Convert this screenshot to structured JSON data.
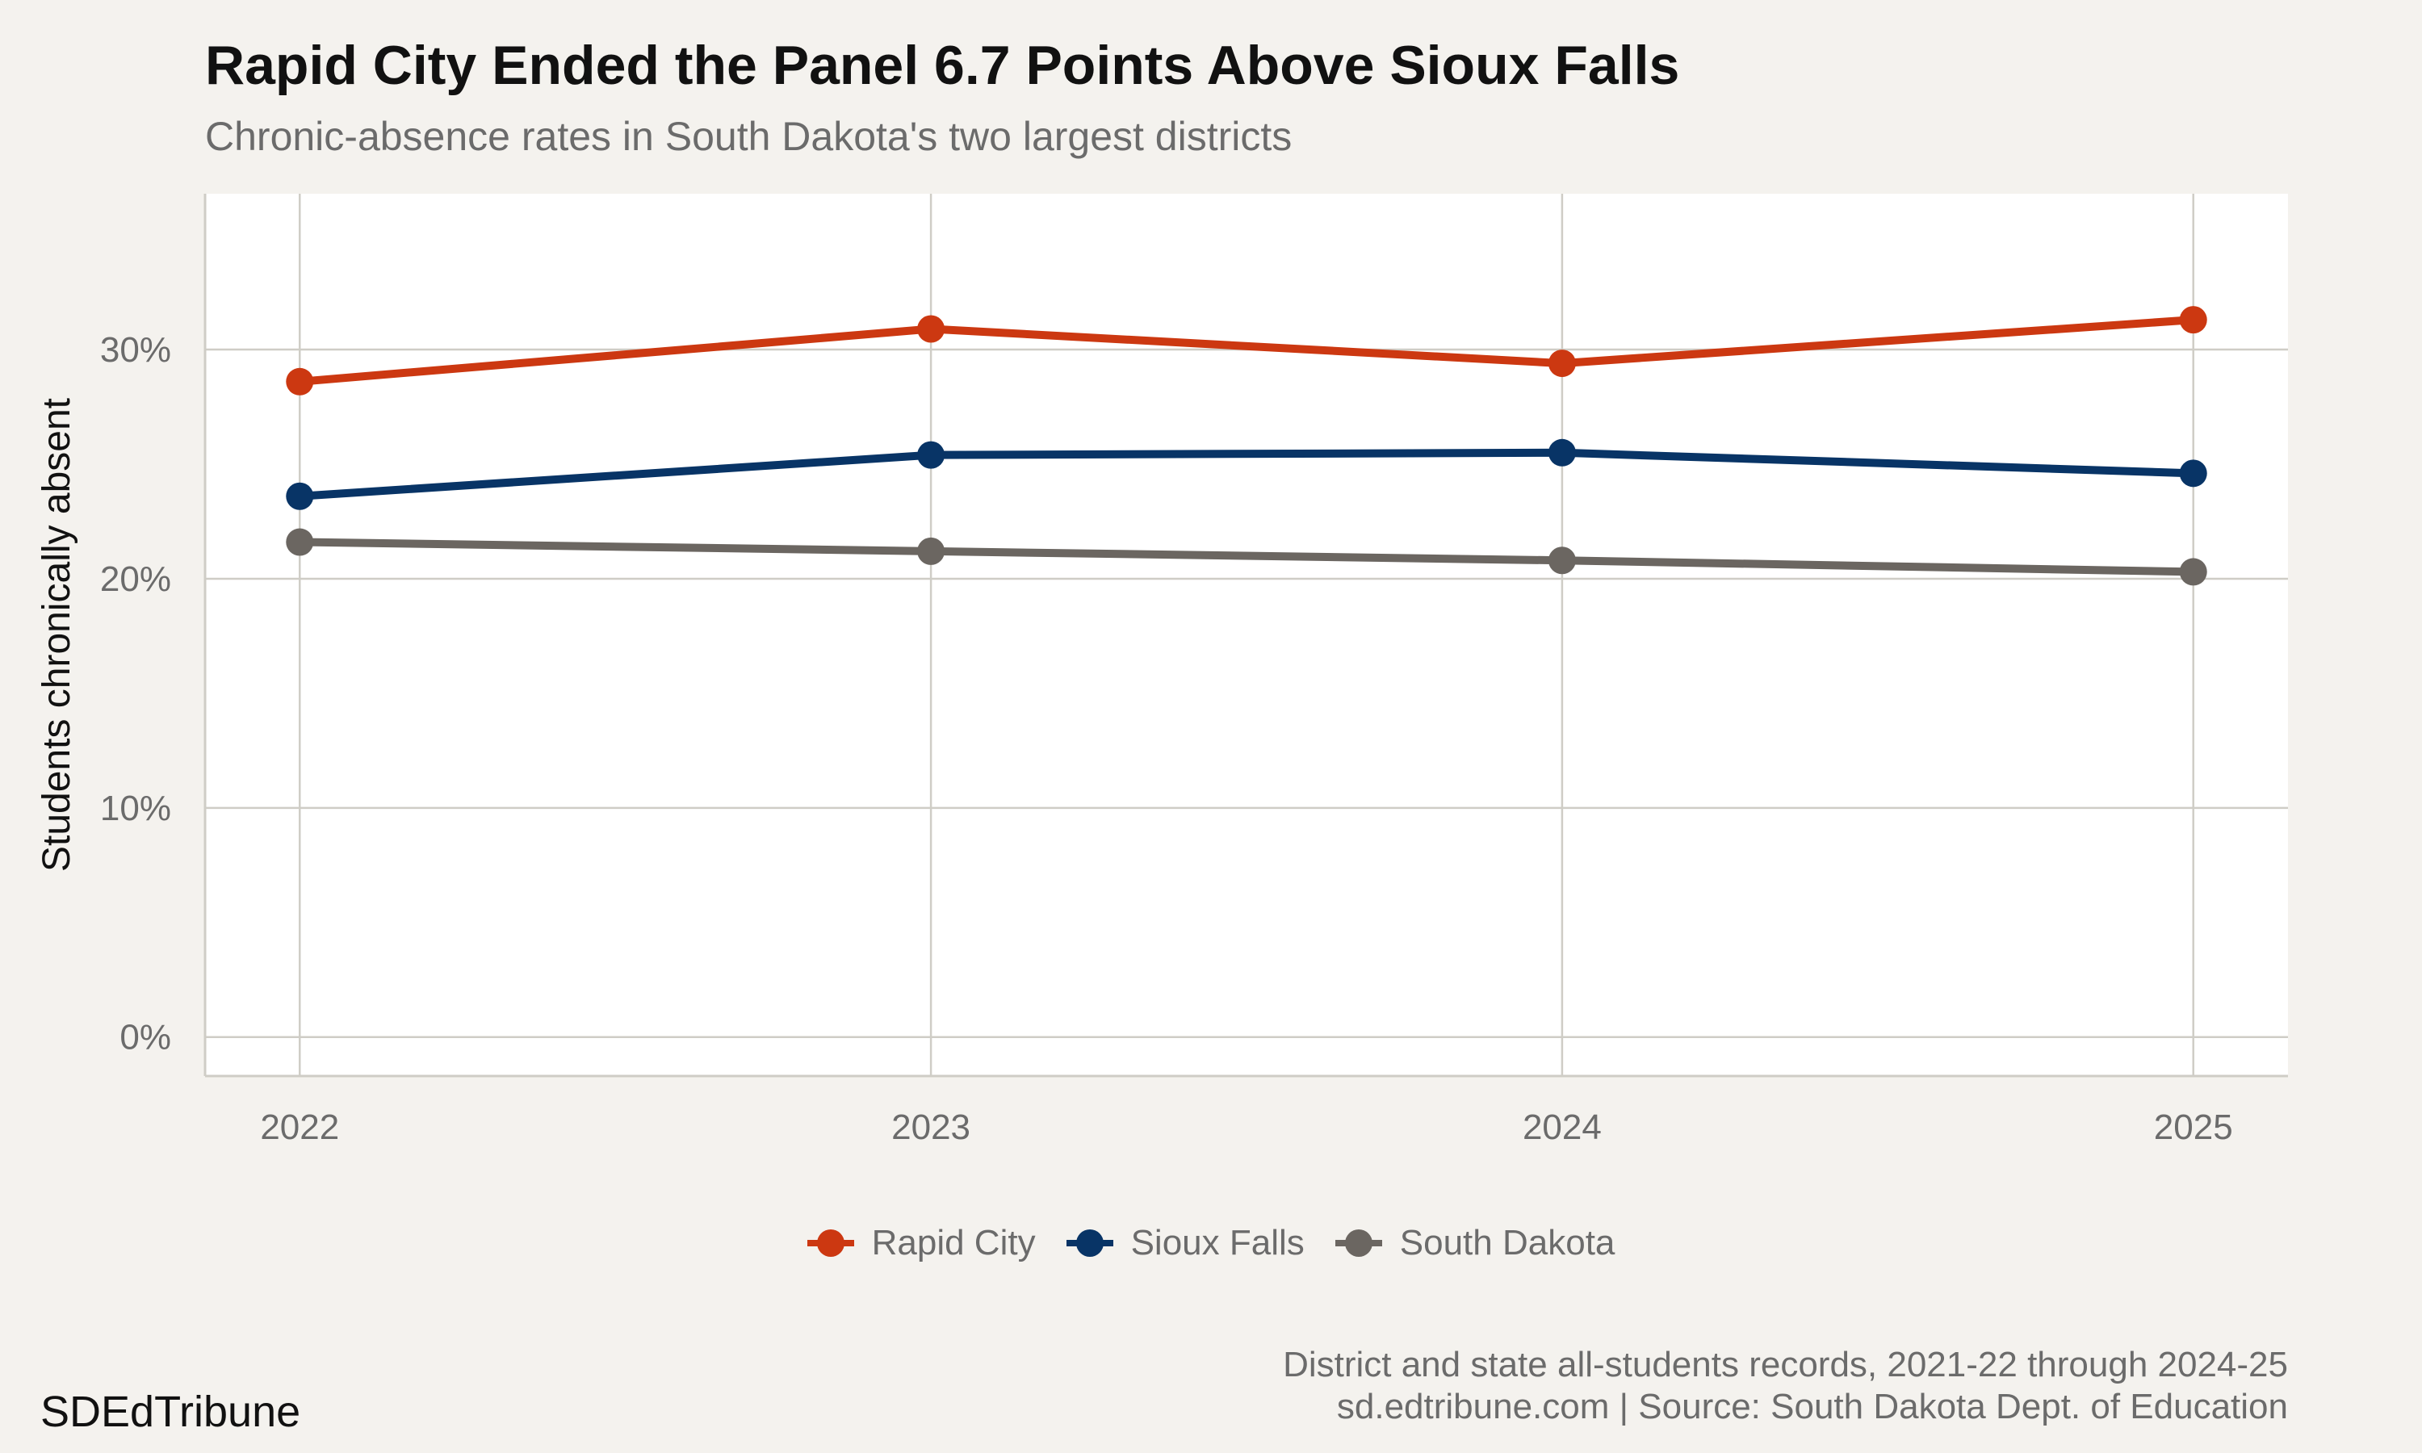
{
  "header": {
    "title": "Rapid City Ended the Panel 6.7 Points Above Sioux Falls",
    "subtitle": "Chronic-absence rates in South Dakota's two largest districts"
  },
  "footer": {
    "caption_line1": "District and state all-students records, 2021-22 through 2024-25",
    "caption_line2": "sd.edtribune.com | Source: South Dakota Dept. of Education",
    "brand": "SDEdTribune"
  },
  "colors": {
    "background": "#f4f2ee",
    "plot_background": "#ffffff",
    "grid": "#cfcdc6",
    "rapid_city": "#cc3811",
    "sioux_falls": "#083466",
    "south_dakota": "#6b6661"
  },
  "chart_data": {
    "type": "line",
    "title": "Rapid City Ended the Panel 6.7 Points Above Sioux Falls",
    "subtitle": "Chronic-absence rates in South Dakota's two largest districts",
    "xlabel": "",
    "ylabel": "Students chronically absent",
    "x": [
      2022,
      2023,
      2024,
      2025
    ],
    "x_tick_labels": [
      "2022",
      "2023",
      "2024",
      "2025"
    ],
    "y_ticks": [
      0,
      10,
      20,
      30
    ],
    "y_tick_labels": [
      "0%",
      "10%",
      "20%",
      "30%"
    ],
    "ylim": [
      -1.7,
      36.8
    ],
    "xlim": [
      2021.85,
      2025.15
    ],
    "grid": true,
    "legend_position": "bottom",
    "series": [
      {
        "name": "Rapid City",
        "color": "#cc3811",
        "values": [
          28.6,
          30.9,
          29.4,
          31.3
        ]
      },
      {
        "name": "Sioux Falls",
        "color": "#083466",
        "values": [
          23.6,
          25.4,
          25.5,
          24.6
        ]
      },
      {
        "name": "South Dakota",
        "color": "#6b6661",
        "values": [
          21.6,
          21.2,
          20.8,
          20.3
        ]
      }
    ]
  }
}
